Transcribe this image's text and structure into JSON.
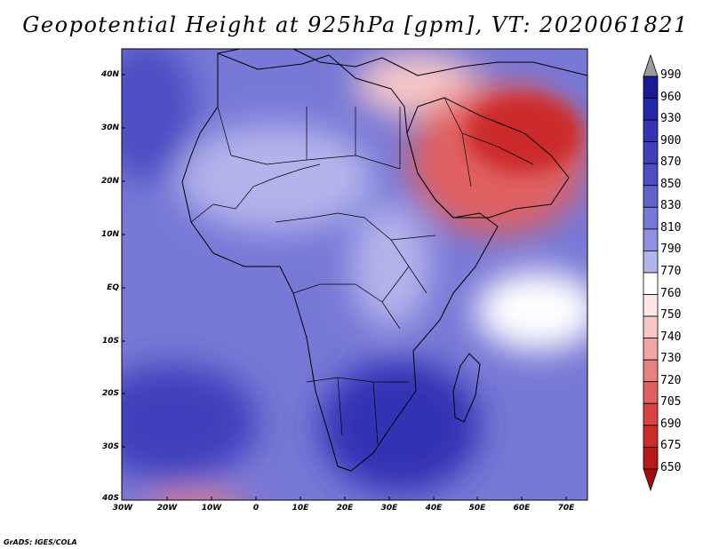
{
  "title": "Geopotential Height at 925hPa [gpm], VT: 2020061821",
  "credit": "GrADS: IGES/COLA",
  "latitude_labels": [
    "40N",
    "30N",
    "20N",
    "10N",
    "EQ",
    "10S",
    "20S",
    "30S",
    "40S"
  ],
  "longitude_labels": [
    "30W",
    "20W",
    "10W",
    "0",
    "10E",
    "20E",
    "30E",
    "40E",
    "50E",
    "60E",
    "70E"
  ],
  "colorbar": {
    "labels": [
      "990",
      "960",
      "930",
      "900",
      "870",
      "850",
      "830",
      "810",
      "790",
      "770",
      "760",
      "750",
      "740",
      "730",
      "720",
      "705",
      "690",
      "675",
      "650"
    ],
    "colors": [
      "#9c9c9c",
      "#1a1a96",
      "#2626a8",
      "#3333b4",
      "#4040bc",
      "#4d4dc4",
      "#6262cc",
      "#7878d6",
      "#9090e0",
      "#b4b4ec",
      "#ffffff",
      "#fce6e6",
      "#f8c8c8",
      "#f0a4a4",
      "#e88080",
      "#e06060",
      "#d84444",
      "#cc2c2c",
      "#b81818",
      "#a40d0d"
    ]
  },
  "map_colors": {
    "background_ocean": "#7878d6",
    "south_atlantic_high": "#4040bc",
    "north_atlantic_high": "#4d4dc4",
    "southern_africa": "#3333b4",
    "sahara": "#b4b4ec",
    "indian_ocean_low": "#ffffff",
    "arabian_low": "#cc2c2c",
    "middle_east": "#e06060",
    "levant": "#f8c8c8",
    "southern_margin": "#e88080"
  }
}
